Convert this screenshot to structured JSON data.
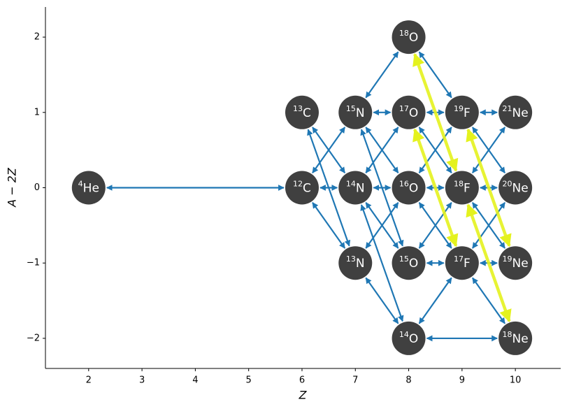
{
  "chart_data": {
    "type": "network",
    "xlabel": "Z",
    "ylabel": "A − 2Z",
    "xlim": [
      1.19,
      10.85
    ],
    "ylim": [
      -2.4,
      2.4
    ],
    "xticks": [
      2,
      3,
      4,
      5,
      6,
      7,
      8,
      9,
      10
    ],
    "yticks": [
      {
        "value": -2,
        "label": "−2"
      },
      {
        "value": -1,
        "label": "−1"
      },
      0,
      1,
      2
    ],
    "node_color": "#404040",
    "nodes": [
      {
        "mass": 4,
        "element": "He",
        "x": 2,
        "y": 0
      },
      {
        "mass": 12,
        "element": "C",
        "x": 6,
        "y": 0
      },
      {
        "mass": 13,
        "element": "C",
        "x": 6,
        "y": 1
      },
      {
        "mass": 13,
        "element": "N",
        "x": 7,
        "y": -1
      },
      {
        "mass": 14,
        "element": "N",
        "x": 7,
        "y": 0
      },
      {
        "mass": 15,
        "element": "N",
        "x": 7,
        "y": 1
      },
      {
        "mass": 14,
        "element": "O",
        "x": 8,
        "y": -2
      },
      {
        "mass": 15,
        "element": "O",
        "x": 8,
        "y": -1
      },
      {
        "mass": 16,
        "element": "O",
        "x": 8,
        "y": 0
      },
      {
        "mass": 17,
        "element": "O",
        "x": 8,
        "y": 1
      },
      {
        "mass": 18,
        "element": "O",
        "x": 8,
        "y": 2
      },
      {
        "mass": 17,
        "element": "F",
        "x": 9,
        "y": -1
      },
      {
        "mass": 18,
        "element": "F",
        "x": 9,
        "y": 0
      },
      {
        "mass": 19,
        "element": "F",
        "x": 9,
        "y": 1
      },
      {
        "mass": 18,
        "element": "Ne",
        "x": 10,
        "y": -2
      },
      {
        "mass": 19,
        "element": "Ne",
        "x": 10,
        "y": -1
      },
      {
        "mass": 20,
        "element": "Ne",
        "x": 10,
        "y": 0
      },
      {
        "mass": 21,
        "element": "Ne",
        "x": 10,
        "y": 1
      }
    ],
    "edges": [
      {
        "from": 0,
        "to": 1,
        "color": "#1f77b4"
      },
      {
        "from": 1,
        "to": 3,
        "color": "#1f77b4"
      },
      {
        "from": 1,
        "to": 4,
        "color": "#1f77b4"
      },
      {
        "from": 1,
        "to": 5,
        "color": "#1f77b4"
      },
      {
        "from": 2,
        "to": 4,
        "color": "#1f77b4"
      },
      {
        "from": 2,
        "to": 3,
        "color": "#1f77b4"
      },
      {
        "from": 3,
        "to": 6,
        "color": "#1f77b4"
      },
      {
        "from": 3,
        "to": 8,
        "color": "#1f77b4"
      },
      {
        "from": 4,
        "to": 8,
        "color": "#1f77b4"
      },
      {
        "from": 4,
        "to": 7,
        "color": "#1f77b4"
      },
      {
        "from": 4,
        "to": 9,
        "color": "#1f77b4"
      },
      {
        "from": 4,
        "to": 6,
        "color": "#1f77b4"
      },
      {
        "from": 5,
        "to": 8,
        "color": "#1f77b4"
      },
      {
        "from": 5,
        "to": 9,
        "color": "#1f77b4"
      },
      {
        "from": 5,
        "to": 10,
        "color": "#1f77b4"
      },
      {
        "from": 5,
        "to": 7,
        "color": "#1f77b4"
      },
      {
        "from": 6,
        "to": 11,
        "color": "#1f77b4"
      },
      {
        "from": 6,
        "to": 14,
        "color": "#1f77b4"
      },
      {
        "from": 7,
        "to": 11,
        "color": "#1f77b4"
      },
      {
        "from": 7,
        "to": 12,
        "color": "#1f77b4"
      },
      {
        "from": 8,
        "to": 11,
        "color": "#1f77b4"
      },
      {
        "from": 8,
        "to": 12,
        "color": "#1f77b4"
      },
      {
        "from": 8,
        "to": 13,
        "color": "#1f77b4"
      },
      {
        "from": 9,
        "to": 12,
        "color": "#1f77b4"
      },
      {
        "from": 9,
        "to": 13,
        "color": "#1f77b4"
      },
      {
        "from": 10,
        "to": 13,
        "color": "#1f77b4"
      },
      {
        "from": 11,
        "to": 14,
        "color": "#1f77b4"
      },
      {
        "from": 11,
        "to": 15,
        "color": "#1f77b4"
      },
      {
        "from": 11,
        "to": 16,
        "color": "#1f77b4"
      },
      {
        "from": 12,
        "to": 15,
        "color": "#1f77b4"
      },
      {
        "from": 12,
        "to": 16,
        "color": "#1f77b4"
      },
      {
        "from": 12,
        "to": 17,
        "color": "#1f77b4"
      },
      {
        "from": 13,
        "to": 16,
        "color": "#1f77b4"
      },
      {
        "from": 13,
        "to": 17,
        "color": "#1f77b4"
      },
      {
        "from": 10,
        "to": 12,
        "color": "#e4f21e"
      },
      {
        "from": 9,
        "to": 11,
        "color": "#e4f21e"
      },
      {
        "from": 13,
        "to": 15,
        "color": "#e4f21e"
      },
      {
        "from": 12,
        "to": 14,
        "color": "#e4f21e"
      }
    ]
  }
}
